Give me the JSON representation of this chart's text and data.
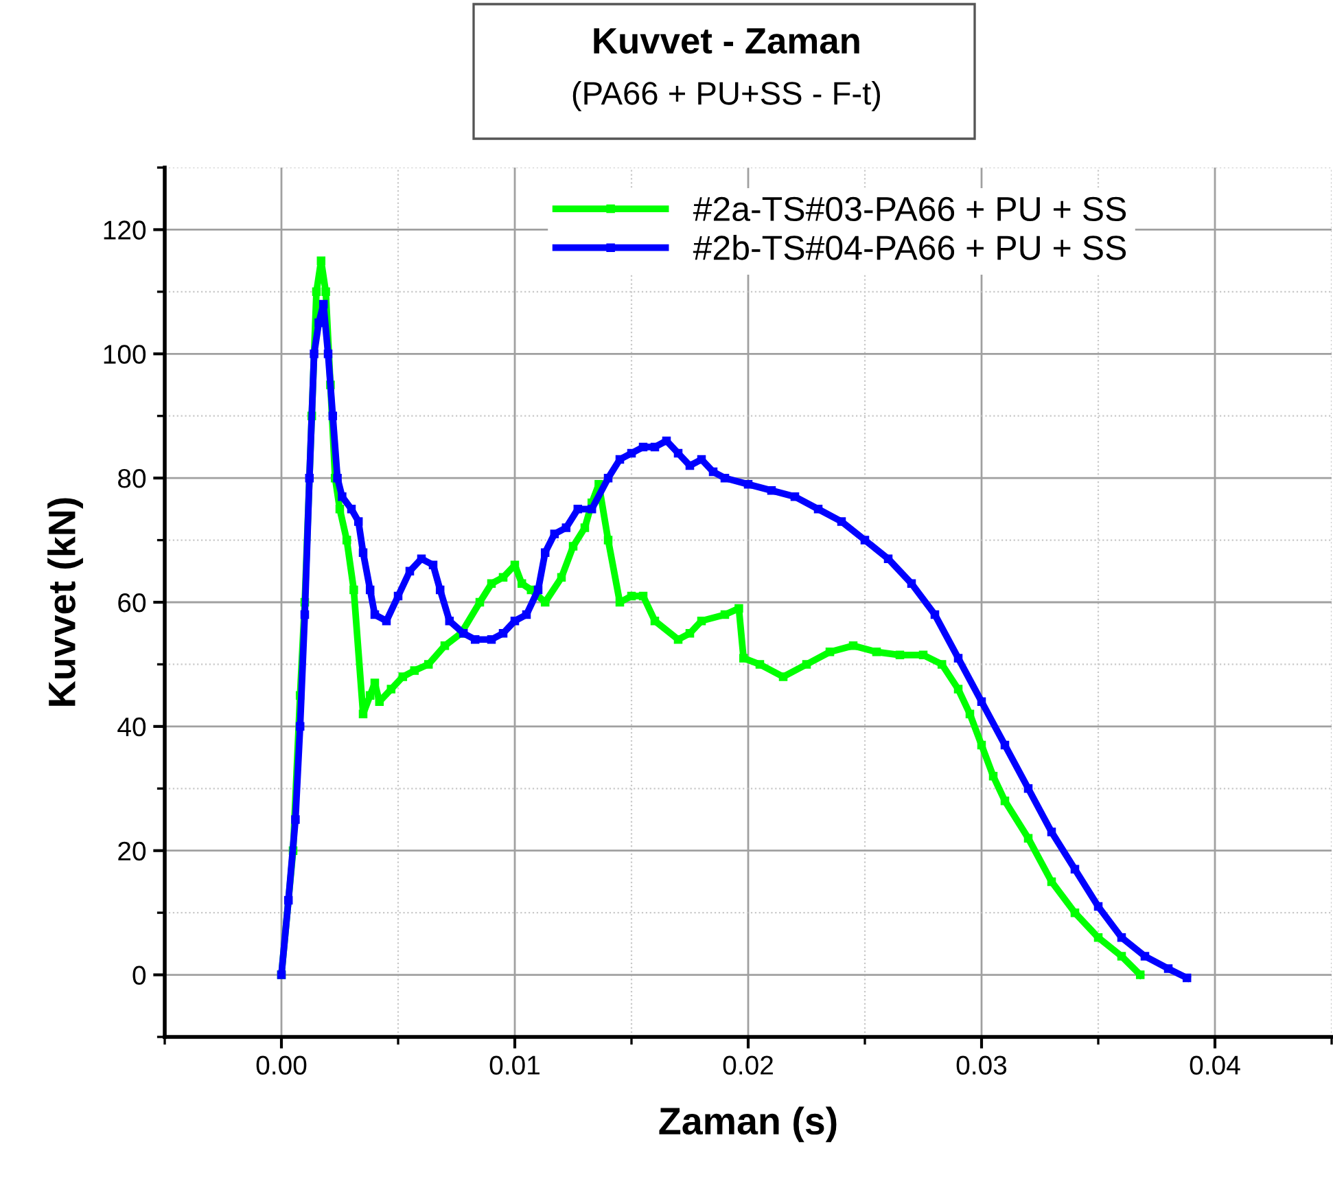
{
  "chart_data": {
    "type": "line",
    "title": "Kuvvet - Zaman",
    "subtitle": "(PA66 + PU+SS - F-t)",
    "xlabel": "Zaman (s)",
    "ylabel": "Kuvvet (kN)",
    "xlim": [
      -0.005,
      0.045
    ],
    "xticks": [
      {
        "value": 0,
        "label": "0.00"
      },
      {
        "value": 0.01,
        "label": "0.01"
      },
      {
        "value": 0.02,
        "label": "0.02"
      },
      {
        "value": 0.03,
        "label": "0.03"
      },
      {
        "value": 0.04,
        "label": "0.04"
      }
    ],
    "ylim": [
      -10,
      130
    ],
    "yticks": [
      0,
      20,
      40,
      60,
      80,
      100,
      120
    ],
    "grid": true,
    "legend": "top",
    "marker": "square",
    "line_style": "solid",
    "series": [
      {
        "name": "#2a-TS#03-PA66 + PU + SS",
        "color": "#00ff00",
        "x": [
          0,
          0.0005,
          0.0008,
          0.001,
          0.0013,
          0.0015,
          0.0017,
          0.0019,
          0.0021,
          0.0023,
          0.0025,
          0.0028,
          0.0031,
          0.0035,
          0.0038,
          0.004,
          0.0042,
          0.0047,
          0.0052,
          0.0057,
          0.0063,
          0.007,
          0.0077,
          0.0085,
          0.009,
          0.0095,
          0.01,
          0.0103,
          0.0107,
          0.0113,
          0.012,
          0.0125,
          0.013,
          0.0133,
          0.0136,
          0.014,
          0.0145,
          0.015,
          0.0155,
          0.016,
          0.017,
          0.0175,
          0.018,
          0.019,
          0.0196,
          0.0198,
          0.0205,
          0.0215,
          0.0225,
          0.0235,
          0.0245,
          0.0255,
          0.0265,
          0.0275,
          0.0283,
          0.029,
          0.0295,
          0.03,
          0.0305,
          0.031,
          0.032,
          0.033,
          0.034,
          0.035,
          0.036,
          0.0368
        ],
        "values": [
          0,
          20,
          45,
          60,
          90,
          110,
          115,
          110,
          95,
          80,
          75,
          70,
          62,
          42,
          45,
          47,
          44,
          46,
          48,
          49,
          50,
          53,
          55,
          60,
          63,
          64,
          66,
          63,
          62,
          60,
          64,
          69,
          72,
          76,
          79,
          70,
          60,
          61,
          61,
          57,
          54,
          55,
          57,
          58,
          59,
          51,
          50,
          48,
          50,
          52,
          53,
          52,
          51.5,
          51.5,
          50,
          46,
          42,
          37,
          32,
          28,
          22,
          15,
          10,
          6,
          3,
          0
        ]
      },
      {
        "name": "#2b-TS#04-PA66 + PU + SS",
        "color": "#0000ff",
        "x": [
          0,
          0.0003,
          0.0006,
          0.0008,
          0.001,
          0.0012,
          0.0014,
          0.0016,
          0.0018,
          0.002,
          0.0022,
          0.0024,
          0.0026,
          0.003,
          0.0033,
          0.0035,
          0.0038,
          0.004,
          0.0045,
          0.005,
          0.0055,
          0.006,
          0.0065,
          0.0068,
          0.0072,
          0.0078,
          0.0083,
          0.009,
          0.0095,
          0.01,
          0.0105,
          0.011,
          0.0113,
          0.0117,
          0.0122,
          0.0127,
          0.0133,
          0.014,
          0.0145,
          0.015,
          0.0155,
          0.016,
          0.0165,
          0.017,
          0.0175,
          0.018,
          0.0185,
          0.019,
          0.02,
          0.021,
          0.022,
          0.023,
          0.024,
          0.025,
          0.026,
          0.027,
          0.028,
          0.029,
          0.03,
          0.031,
          0.032,
          0.033,
          0.034,
          0.035,
          0.036,
          0.037,
          0.038,
          0.0388
        ],
        "values": [
          0,
          12,
          25,
          40,
          58,
          80,
          100,
          105,
          108,
          100,
          90,
          80,
          77,
          75,
          73,
          68,
          62,
          58,
          57,
          61,
          65,
          67,
          66,
          62,
          57,
          55,
          54,
          54,
          55,
          57,
          58,
          62,
          68,
          71,
          72,
          75,
          75,
          80,
          83,
          84,
          85,
          85,
          86,
          84,
          82,
          83,
          81,
          80,
          79,
          78,
          77,
          75,
          73,
          70,
          67,
          63,
          58,
          51,
          44,
          37,
          30,
          23,
          17,
          11,
          6,
          3,
          1,
          -0.5
        ]
      }
    ]
  }
}
